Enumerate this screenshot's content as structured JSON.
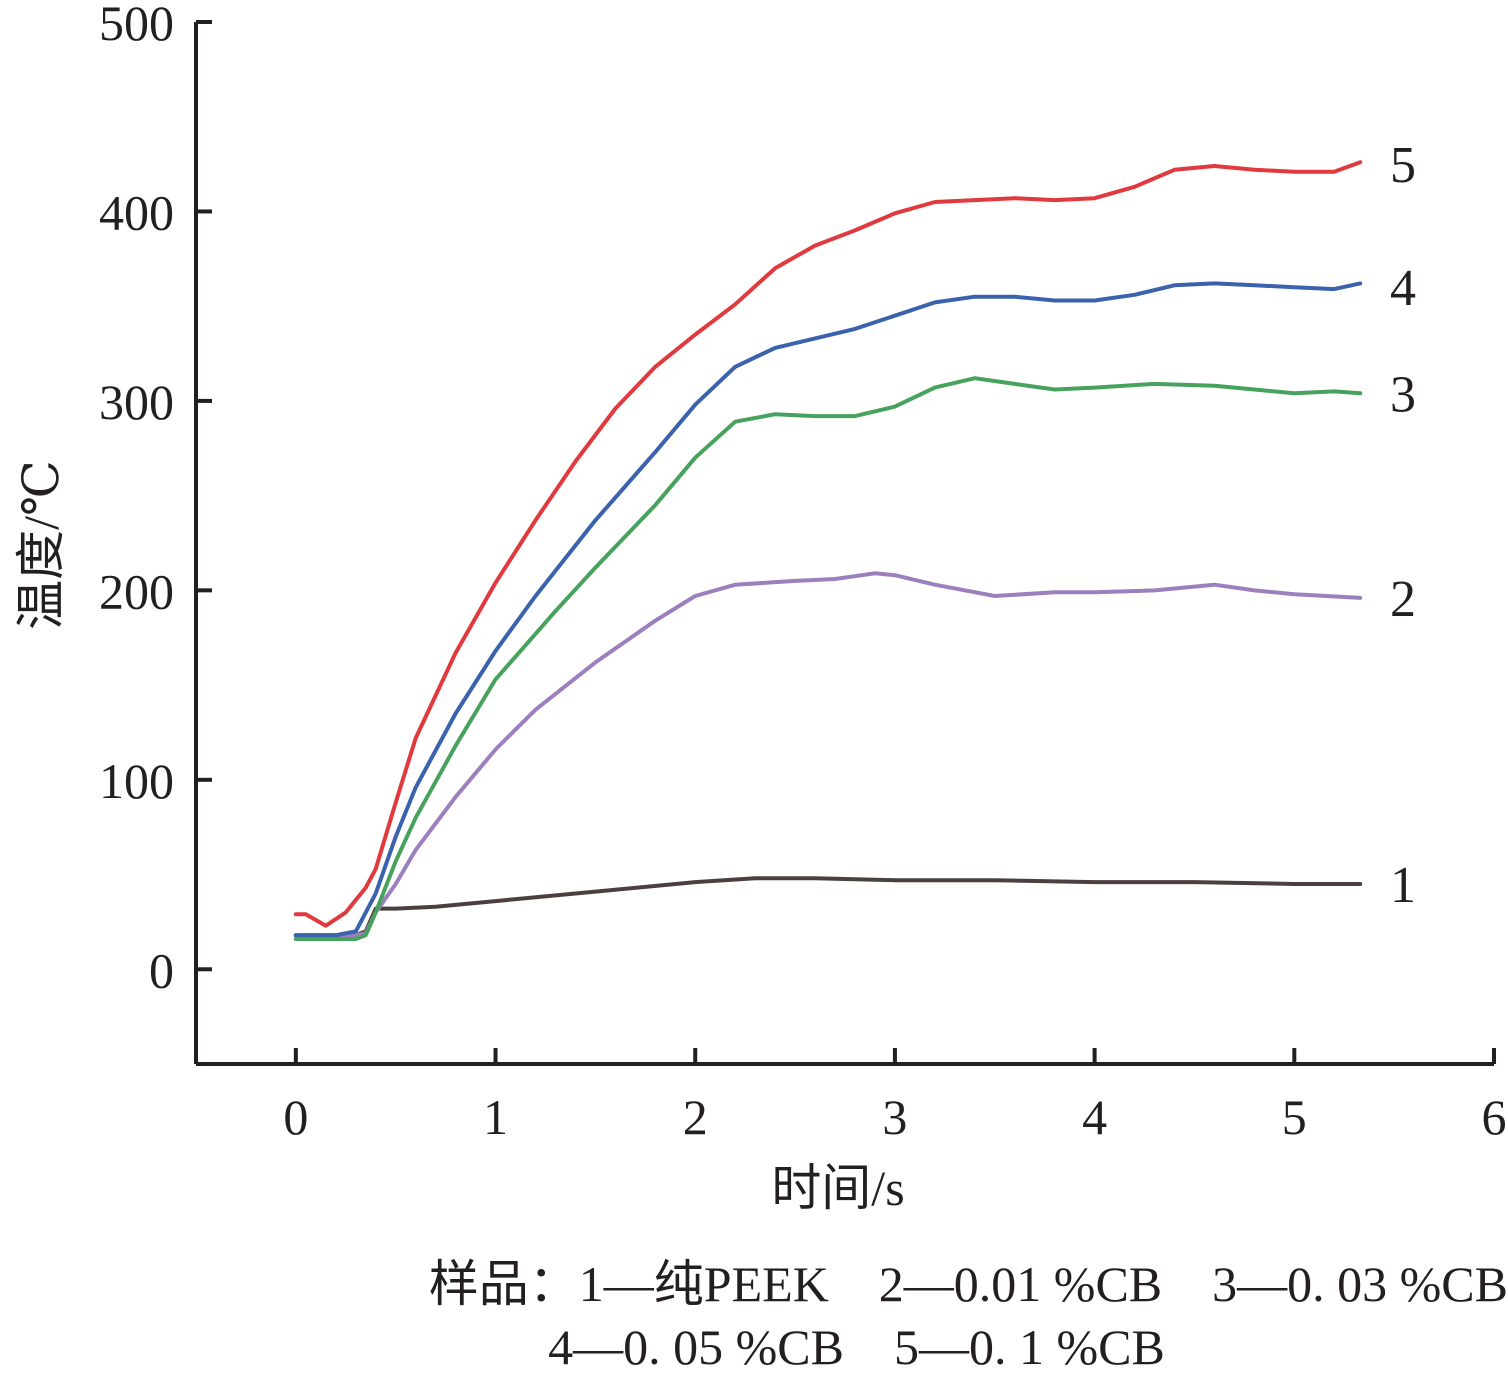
{
  "chart_data": {
    "type": "line",
    "xlabel": "时间/s",
    "ylabel": "温度/℃",
    "xlim": [
      -0.5,
      6
    ],
    "ylim": [
      -50,
      500
    ],
    "xticks": [
      0,
      1,
      2,
      3,
      4,
      5,
      6
    ],
    "yticks": [
      0,
      100,
      200,
      300,
      400,
      500
    ],
    "grid": false,
    "series": [
      {
        "name": "1",
        "color": "#4e3f3f",
        "x": [
          0,
          0.1,
          0.2,
          0.3,
          0.35,
          0.4,
          0.5,
          0.7,
          1.0,
          1.5,
          2.0,
          2.3,
          2.6,
          3.0,
          3.5,
          4.0,
          4.5,
          5.0,
          5.33
        ],
        "y": [
          18,
          18,
          18,
          18,
          20,
          32,
          32,
          33,
          36,
          41,
          46,
          48,
          48,
          47,
          47,
          46,
          46,
          45,
          45
        ]
      },
      {
        "name": "2",
        "color": "#9c7fbd",
        "x": [
          0,
          0.1,
          0.2,
          0.3,
          0.35,
          0.4,
          0.5,
          0.6,
          0.8,
          1.0,
          1.2,
          1.5,
          1.8,
          2.0,
          2.2,
          2.5,
          2.7,
          2.9,
          3.0,
          3.2,
          3.5,
          3.8,
          4.0,
          4.3,
          4.6,
          4.8,
          5.0,
          5.33
        ],
        "y": [
          18,
          18,
          18,
          18,
          19,
          30,
          45,
          63,
          91,
          116,
          137,
          162,
          184,
          197,
          203,
          205,
          206,
          209,
          208,
          203,
          197,
          199,
          199,
          200,
          203,
          200,
          198,
          196
        ]
      },
      {
        "name": "3",
        "color": "#47a25d",
        "x": [
          0,
          0.1,
          0.2,
          0.3,
          0.35,
          0.4,
          0.5,
          0.6,
          0.8,
          1.0,
          1.1,
          1.3,
          1.5,
          1.8,
          2.0,
          2.2,
          2.4,
          2.6,
          2.8,
          3.0,
          3.2,
          3.4,
          3.6,
          3.8,
          4.0,
          4.3,
          4.6,
          4.8,
          5.0,
          5.2,
          5.33
        ],
        "y": [
          16,
          16,
          16,
          16,
          18,
          30,
          57,
          80,
          118,
          153,
          165,
          189,
          212,
          245,
          270,
          289,
          293,
          292,
          292,
          297,
          307,
          312,
          309,
          306,
          307,
          309,
          308,
          306,
          304,
          305,
          304
        ]
      },
      {
        "name": "4",
        "color": "#3a62ad",
        "x": [
          0,
          0.1,
          0.2,
          0.3,
          0.4,
          0.5,
          0.6,
          0.8,
          1.0,
          1.2,
          1.5,
          1.8,
          2.0,
          2.2,
          2.4,
          2.6,
          2.8,
          3.0,
          3.2,
          3.4,
          3.6,
          3.8,
          4.0,
          4.2,
          4.4,
          4.6,
          4.8,
          5.0,
          5.2,
          5.33
        ],
        "y": [
          18,
          18,
          18,
          20,
          40,
          70,
          96,
          135,
          168,
          197,
          237,
          273,
          298,
          318,
          328,
          333,
          338,
          345,
          352,
          355,
          355,
          353,
          353,
          356,
          361,
          362,
          361,
          360,
          359,
          362
        ]
      },
      {
        "name": "5",
        "color": "#e0393e",
        "x": [
          0,
          0.05,
          0.15,
          0.25,
          0.35,
          0.4,
          0.5,
          0.6,
          0.8,
          1.0,
          1.2,
          1.4,
          1.6,
          1.8,
          2.0,
          2.2,
          2.4,
          2.6,
          2.8,
          3.0,
          3.2,
          3.4,
          3.6,
          3.8,
          4.0,
          4.2,
          4.4,
          4.6,
          4.8,
          5.0,
          5.2,
          5.33
        ],
        "y": [
          29,
          29,
          23,
          30,
          43,
          53,
          88,
          122,
          167,
          204,
          237,
          268,
          296,
          318,
          335,
          351,
          370,
          382,
          390,
          399,
          405,
          406,
          407,
          406,
          407,
          413,
          422,
          424,
          422,
          421,
          421,
          426
        ]
      }
    ],
    "end_labels": [
      {
        "text": "1",
        "y": 45
      },
      {
        "text": "2",
        "y": 196
      },
      {
        "text": "3",
        "y": 304
      },
      {
        "text": "4",
        "y": 360
      },
      {
        "text": "5",
        "y": 425
      }
    ]
  },
  "caption": {
    "line1": "样品：1—纯PEEK    2—0.01 %CB    3—0. 03 %CB",
    "line2": "4—0. 05 %CB    5—0. 1 %CB"
  }
}
